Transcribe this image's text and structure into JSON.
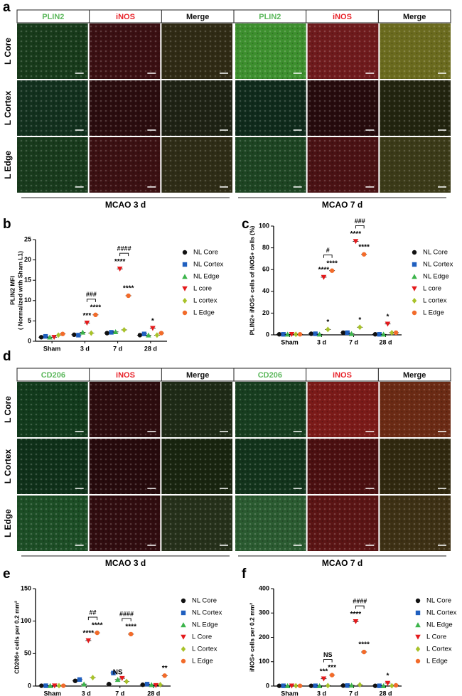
{
  "panel_labels": [
    "a",
    "b",
    "c",
    "d",
    "e",
    "f"
  ],
  "image_panels": [
    {
      "columns": [
        "PLIN2",
        "iNOS",
        "Merge",
        "PLIN2",
        "iNOS",
        "Merge"
      ],
      "rows": [
        "L Core",
        "L Cortex",
        "L Edge"
      ],
      "groups": [
        "MCAO 3 d",
        "MCAO 7 d"
      ]
    },
    {
      "columns": [
        "CD206",
        "iNOS",
        "Merge",
        "CD206",
        "iNOS",
        "Merge"
      ],
      "rows": [
        "L Core",
        "L Cortex",
        "L Edge"
      ],
      "groups": [
        "MCAO 3 d",
        "MCAO 7 d"
      ]
    }
  ],
  "chart_data": [
    {
      "type": "dot",
      "y_label": [
        "PLIN2 MFI",
        "( Normalized with Sham L1)"
      ],
      "categories": [
        "Sham",
        "3 d",
        "7 d",
        "28 d"
      ],
      "ylim": [
        0,
        25
      ],
      "yticks": [
        0,
        5,
        10,
        15,
        20,
        25
      ],
      "series": [
        {
          "name": "NL Core",
          "color": "#111111",
          "marker": "circle",
          "values": [
            1.0,
            1.6,
            2.0,
            1.5
          ]
        },
        {
          "name": "NL Cortex",
          "color": "#1f5fbf",
          "marker": "square",
          "values": [
            1.2,
            1.5,
            2.2,
            1.8
          ]
        },
        {
          "name": "NL Edge",
          "color": "#3cb44b",
          "marker": "triangle",
          "values": [
            1.0,
            2.2,
            2.3,
            1.5
          ]
        },
        {
          "name": "L core",
          "color": "#e41a1c",
          "marker": "triangle-down",
          "values": [
            1.0,
            4.5,
            17.8,
            3.2
          ]
        },
        {
          "name": "L cortex",
          "color": "#a8c22a",
          "marker": "diamond",
          "values": [
            1.5,
            2.0,
            2.8,
            1.5
          ]
        },
        {
          "name": "L Edge",
          "color": "#f26b2a",
          "marker": "circle",
          "values": [
            1.8,
            6.5,
            11.2,
            2.0
          ]
        }
      ],
      "annotations": [
        {
          "text": "***",
          "category": 1,
          "series": 3
        },
        {
          "text": "****",
          "category": 1,
          "series": 5
        },
        {
          "text": "###",
          "category": 1,
          "series": [
            3,
            5
          ]
        },
        {
          "text": "****",
          "category": 2,
          "series": 3
        },
        {
          "text": "****",
          "category": 2,
          "series": 5
        },
        {
          "text": "####",
          "category": 2,
          "series": [
            3,
            5
          ]
        },
        {
          "text": "*",
          "category": 3,
          "series": 3
        }
      ]
    },
    {
      "type": "dot",
      "y_label": "PLIN2+ iNOS+ cells of iNOS+ cells (%)",
      "categories": [
        "Sham",
        "3 d",
        "7 d",
        "28 d"
      ],
      "ylim": [
        0,
        100
      ],
      "yticks": [
        0,
        20,
        40,
        60,
        80,
        100
      ],
      "series": [
        {
          "name": "NL Core",
          "color": "#111111",
          "marker": "circle",
          "values": [
            0.5,
            1,
            2,
            0.5
          ]
        },
        {
          "name": "NL Cortex",
          "color": "#1f5fbf",
          "marker": "square",
          "values": [
            0.5,
            1,
            2,
            0.5
          ]
        },
        {
          "name": "NL Edge",
          "color": "#3cb44b",
          "marker": "triangle",
          "values": [
            0.5,
            0.5,
            1,
            0.5
          ]
        },
        {
          "name": "L core",
          "color": "#e41a1c",
          "marker": "triangle-down",
          "values": [
            0.5,
            53,
            86,
            10
          ]
        },
        {
          "name": "L cortex",
          "color": "#a8c22a",
          "marker": "diamond",
          "values": [
            0.5,
            5,
            7,
            2
          ]
        },
        {
          "name": "L Edge",
          "color": "#f26b2a",
          "marker": "circle",
          "values": [
            0.5,
            59,
            74,
            2
          ]
        }
      ],
      "annotations": [
        {
          "text": "****",
          "category": 1,
          "series": 3
        },
        {
          "text": "*",
          "category": 1,
          "series": 4
        },
        {
          "text": "****",
          "category": 1,
          "series": 5
        },
        {
          "text": "#",
          "category": 1,
          "series": [
            3,
            5
          ]
        },
        {
          "text": "****",
          "category": 2,
          "series": 3
        },
        {
          "text": "*",
          "category": 2,
          "series": 4
        },
        {
          "text": "****",
          "category": 2,
          "series": 5
        },
        {
          "text": "###",
          "category": 2,
          "series": [
            3,
            5
          ]
        },
        {
          "text": "*",
          "category": 3,
          "series": 3
        }
      ]
    },
    {
      "type": "dot",
      "y_label": "CD206+ cells per 0.2 mm²",
      "categories": [
        "Sham",
        "3 d",
        "7 d",
        "28 d"
      ],
      "ylim": [
        0,
        150
      ],
      "yticks": [
        0,
        50,
        100,
        150
      ],
      "series": [
        {
          "name": "NL Core",
          "color": "#111111",
          "marker": "circle",
          "values": [
            0.5,
            8,
            3,
            2
          ]
        },
        {
          "name": "NL Cortex",
          "color": "#1f5fbf",
          "marker": "square",
          "values": [
            0.5,
            10,
            20,
            3
          ]
        },
        {
          "name": "NL Edge",
          "color": "#3cb44b",
          "marker": "triangle",
          "values": [
            0.5,
            3,
            10,
            2
          ]
        },
        {
          "name": "L Core",
          "color": "#e41a1c",
          "marker": "triangle-down",
          "values": [
            0.5,
            70,
            12,
            1
          ]
        },
        {
          "name": "L Cortex",
          "color": "#a8c22a",
          "marker": "diamond",
          "values": [
            0.5,
            13,
            7,
            2
          ]
        },
        {
          "name": "L Edge",
          "color": "#f26b2a",
          "marker": "circle",
          "values": [
            0.5,
            82,
            80,
            16
          ]
        }
      ],
      "annotations": [
        {
          "text": "****",
          "category": 1,
          "series": 3
        },
        {
          "text": "****",
          "category": 1,
          "series": 5
        },
        {
          "text": "##",
          "category": 1,
          "series": [
            3,
            5
          ]
        },
        {
          "text": "NS",
          "category": 2,
          "series": 2
        },
        {
          "text": "****",
          "category": 2,
          "series": 5
        },
        {
          "text": "####",
          "category": 2,
          "series": [
            3,
            5
          ]
        },
        {
          "text": "**",
          "category": 3,
          "series": 5
        }
      ]
    },
    {
      "type": "dot",
      "y_label": "iNOS+ cells per 0.2 mm²",
      "categories": [
        "Sham",
        "3 d",
        "7 d",
        "28 d"
      ],
      "ylim": [
        0,
        400
      ],
      "yticks": [
        0,
        100,
        200,
        300,
        400
      ],
      "series": [
        {
          "name": "NL Core",
          "color": "#111111",
          "marker": "circle",
          "values": [
            1,
            1,
            2,
            1
          ]
        },
        {
          "name": "NL Cortex",
          "color": "#1f5fbf",
          "marker": "square",
          "values": [
            1,
            1,
            2,
            1
          ]
        },
        {
          "name": "NL Edge",
          "color": "#3cb44b",
          "marker": "triangle",
          "values": [
            1,
            1,
            3,
            1
          ]
        },
        {
          "name": "L Core",
          "color": "#e41a1c",
          "marker": "triangle-down",
          "values": [
            1,
            30,
            265,
            12
          ]
        },
        {
          "name": "L Cortex",
          "color": "#a8c22a",
          "marker": "diamond",
          "values": [
            1,
            2,
            5,
            1
          ]
        },
        {
          "name": "L Edge",
          "color": "#f26b2a",
          "marker": "circle",
          "values": [
            1,
            45,
            140,
            3
          ]
        }
      ],
      "annotations": [
        {
          "text": "***",
          "category": 1,
          "series": 3
        },
        {
          "text": "***",
          "category": 1,
          "series": 5
        },
        {
          "text": "NS",
          "category": 1,
          "series": [
            3,
            5
          ]
        },
        {
          "text": "****",
          "category": 2,
          "series": 3
        },
        {
          "text": "****",
          "category": 2,
          "series": 5
        },
        {
          "text": "####",
          "category": 2,
          "series": [
            3,
            5
          ]
        },
        {
          "text": "*",
          "category": 3,
          "series": 3
        }
      ]
    }
  ]
}
